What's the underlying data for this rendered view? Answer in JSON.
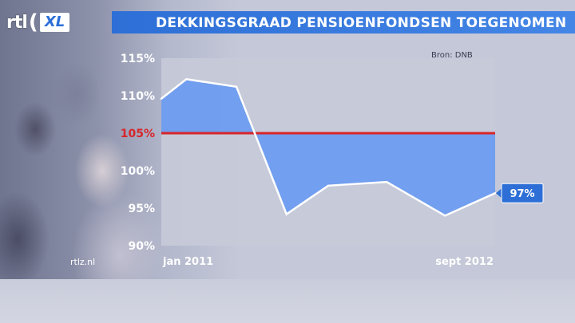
{
  "branding": {
    "logo_rtl": "rtl",
    "logo_xl": "XL",
    "watermark": "rtlz.nl"
  },
  "chart_data": {
    "type": "area",
    "title": "DEKKINGSGRAAD PENSIOENFONDSEN TOEGENOMEN",
    "source": "Bron: DNB",
    "xlabel": "",
    "ylabel": "",
    "x_tick_labels": [
      "jan 2011",
      "sept 2012"
    ],
    "x_range": [
      0,
      20
    ],
    "ylim": [
      90,
      115
    ],
    "y_ticks": [
      115,
      110,
      105,
      100,
      95,
      90
    ],
    "y_tick_labels": [
      "115%",
      "110%",
      "105%",
      "100%",
      "95%",
      "90%"
    ],
    "reference_line": {
      "value": 105,
      "label": "105%",
      "color": "#d8252a"
    },
    "series": [
      {
        "x": [
          0,
          1.5,
          4.5,
          7.5,
          10,
          13.5,
          17,
          20
        ],
        "y": [
          109.6,
          112.2,
          111.2,
          94.2,
          98.0,
          98.5,
          94.0,
          97.0
        ]
      }
    ],
    "end_label": "97%",
    "fill_color": "#6e9cf0",
    "line_color": "#ffffff",
    "grid": false
  }
}
